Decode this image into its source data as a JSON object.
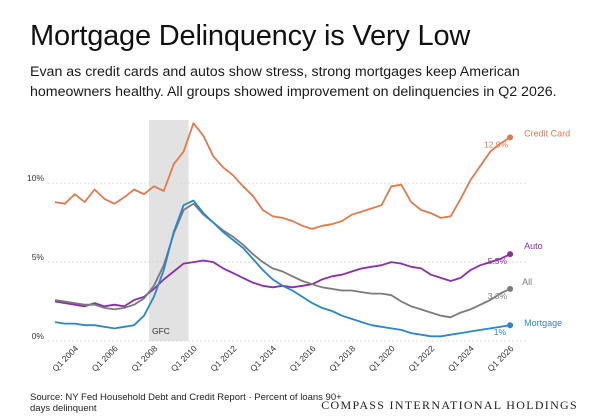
{
  "header": {
    "title": "Mortgage Delinquency is Very Low",
    "subtitle": "Evan as credit cards and autos show stress, strong mortgages keep American homeowners healthy. All groups showed improvement on delinquencies in Q2 2026."
  },
  "footer": {
    "source": "Source: NY Fed Household Debt and Credit Report · Percent of loans 90+ days delinquent",
    "brand": "COMPASS INTERNATIONAL HOLDINGS"
  },
  "chart_data": {
    "type": "line",
    "title": "",
    "xlabel": "",
    "ylabel": "",
    "xlim": [
      2003,
      2026.5
    ],
    "ylim": [
      0,
      14
    ],
    "x_ticks": [
      "Q1 2004",
      "Q1 2006",
      "Q1 2008",
      "Q1 2010",
      "Q1 2012",
      "Q1 2014",
      "Q1 2016",
      "Q1 2018",
      "Q1 2020",
      "Q1 2022",
      "Q1 2024",
      "Q1 2026"
    ],
    "y_ticks": [
      {
        "value": 0,
        "label": "0%"
      },
      {
        "value": 5,
        "label": "5%"
      },
      {
        "value": 10,
        "label": "10%"
      }
    ],
    "grid": "horizontal",
    "legend": "inline-right",
    "shaded_region": {
      "label": "GFC",
      "x_start": 2007.75,
      "x_end": 2009.75,
      "color": "#e2e2e2"
    },
    "x": [
      2003.0,
      2003.5,
      2004.0,
      2004.5,
      2005.0,
      2005.5,
      2006.0,
      2006.5,
      2007.0,
      2007.5,
      2008.0,
      2008.5,
      2009.0,
      2009.5,
      2010.0,
      2010.5,
      2011.0,
      2011.5,
      2012.0,
      2012.5,
      2013.0,
      2013.5,
      2014.0,
      2014.5,
      2015.0,
      2015.5,
      2016.0,
      2016.5,
      2017.0,
      2017.5,
      2018.0,
      2018.5,
      2019.0,
      2019.5,
      2020.0,
      2020.5,
      2021.0,
      2021.5,
      2022.0,
      2022.5,
      2023.0,
      2023.5,
      2024.0,
      2024.5,
      2025.0,
      2025.5,
      2026.0
    ],
    "series": [
      {
        "name": "Credit Card",
        "color": "#e07b4f",
        "end_label": "12.9%",
        "values": [
          8.8,
          8.7,
          9.3,
          8.8,
          9.6,
          9.0,
          8.7,
          9.1,
          9.6,
          9.3,
          9.8,
          9.5,
          11.2,
          12.0,
          13.8,
          13.0,
          11.7,
          11.0,
          10.5,
          9.8,
          9.2,
          8.3,
          7.9,
          7.8,
          7.6,
          7.3,
          7.1,
          7.3,
          7.4,
          7.6,
          8.0,
          8.2,
          8.4,
          8.6,
          9.8,
          9.9,
          8.8,
          8.3,
          8.1,
          7.8,
          7.9,
          9.0,
          10.2,
          11.1,
          12.0,
          12.5,
          12.9
        ]
      },
      {
        "name": "Auto",
        "color": "#8b2fa8",
        "end_label": "5.5%",
        "values": [
          2.5,
          2.4,
          2.3,
          2.2,
          2.4,
          2.2,
          2.3,
          2.2,
          2.6,
          2.8,
          3.3,
          3.9,
          4.4,
          4.9,
          5.0,
          5.1,
          5.0,
          4.6,
          4.3,
          4.0,
          3.7,
          3.5,
          3.4,
          3.5,
          3.4,
          3.5,
          3.6,
          3.9,
          4.1,
          4.2,
          4.4,
          4.6,
          4.7,
          4.8,
          5.0,
          4.9,
          4.7,
          4.6,
          4.2,
          4.0,
          3.8,
          4.0,
          4.5,
          4.8,
          5.0,
          5.2,
          5.5
        ]
      },
      {
        "name": "All",
        "color": "#7b7b7b",
        "end_label": "3.3%",
        "values": [
          2.6,
          2.5,
          2.4,
          2.3,
          2.3,
          2.1,
          2.0,
          2.1,
          2.3,
          2.7,
          3.5,
          4.8,
          6.8,
          8.3,
          8.7,
          8.0,
          7.5,
          7.0,
          6.6,
          6.1,
          5.5,
          5.0,
          4.6,
          4.4,
          4.1,
          3.8,
          3.6,
          3.4,
          3.3,
          3.2,
          3.2,
          3.1,
          3.0,
          3.0,
          2.9,
          2.5,
          2.2,
          2.0,
          1.8,
          1.6,
          1.5,
          1.8,
          2.0,
          2.3,
          2.6,
          3.0,
          3.3
        ]
      },
      {
        "name": "Mortgage",
        "color": "#2b87c9",
        "end_label": "1%",
        "values": [
          1.2,
          1.1,
          1.1,
          1.0,
          1.0,
          0.9,
          0.8,
          0.9,
          1.0,
          1.6,
          2.8,
          4.5,
          6.9,
          8.6,
          8.9,
          8.1,
          7.5,
          6.9,
          6.4,
          5.9,
          5.2,
          4.5,
          3.9,
          3.5,
          3.2,
          2.8,
          2.4,
          2.1,
          1.9,
          1.6,
          1.4,
          1.2,
          1.0,
          0.9,
          0.8,
          0.7,
          0.5,
          0.4,
          0.3,
          0.3,
          0.4,
          0.5,
          0.6,
          0.7,
          0.8,
          0.9,
          1.0
        ]
      }
    ]
  }
}
